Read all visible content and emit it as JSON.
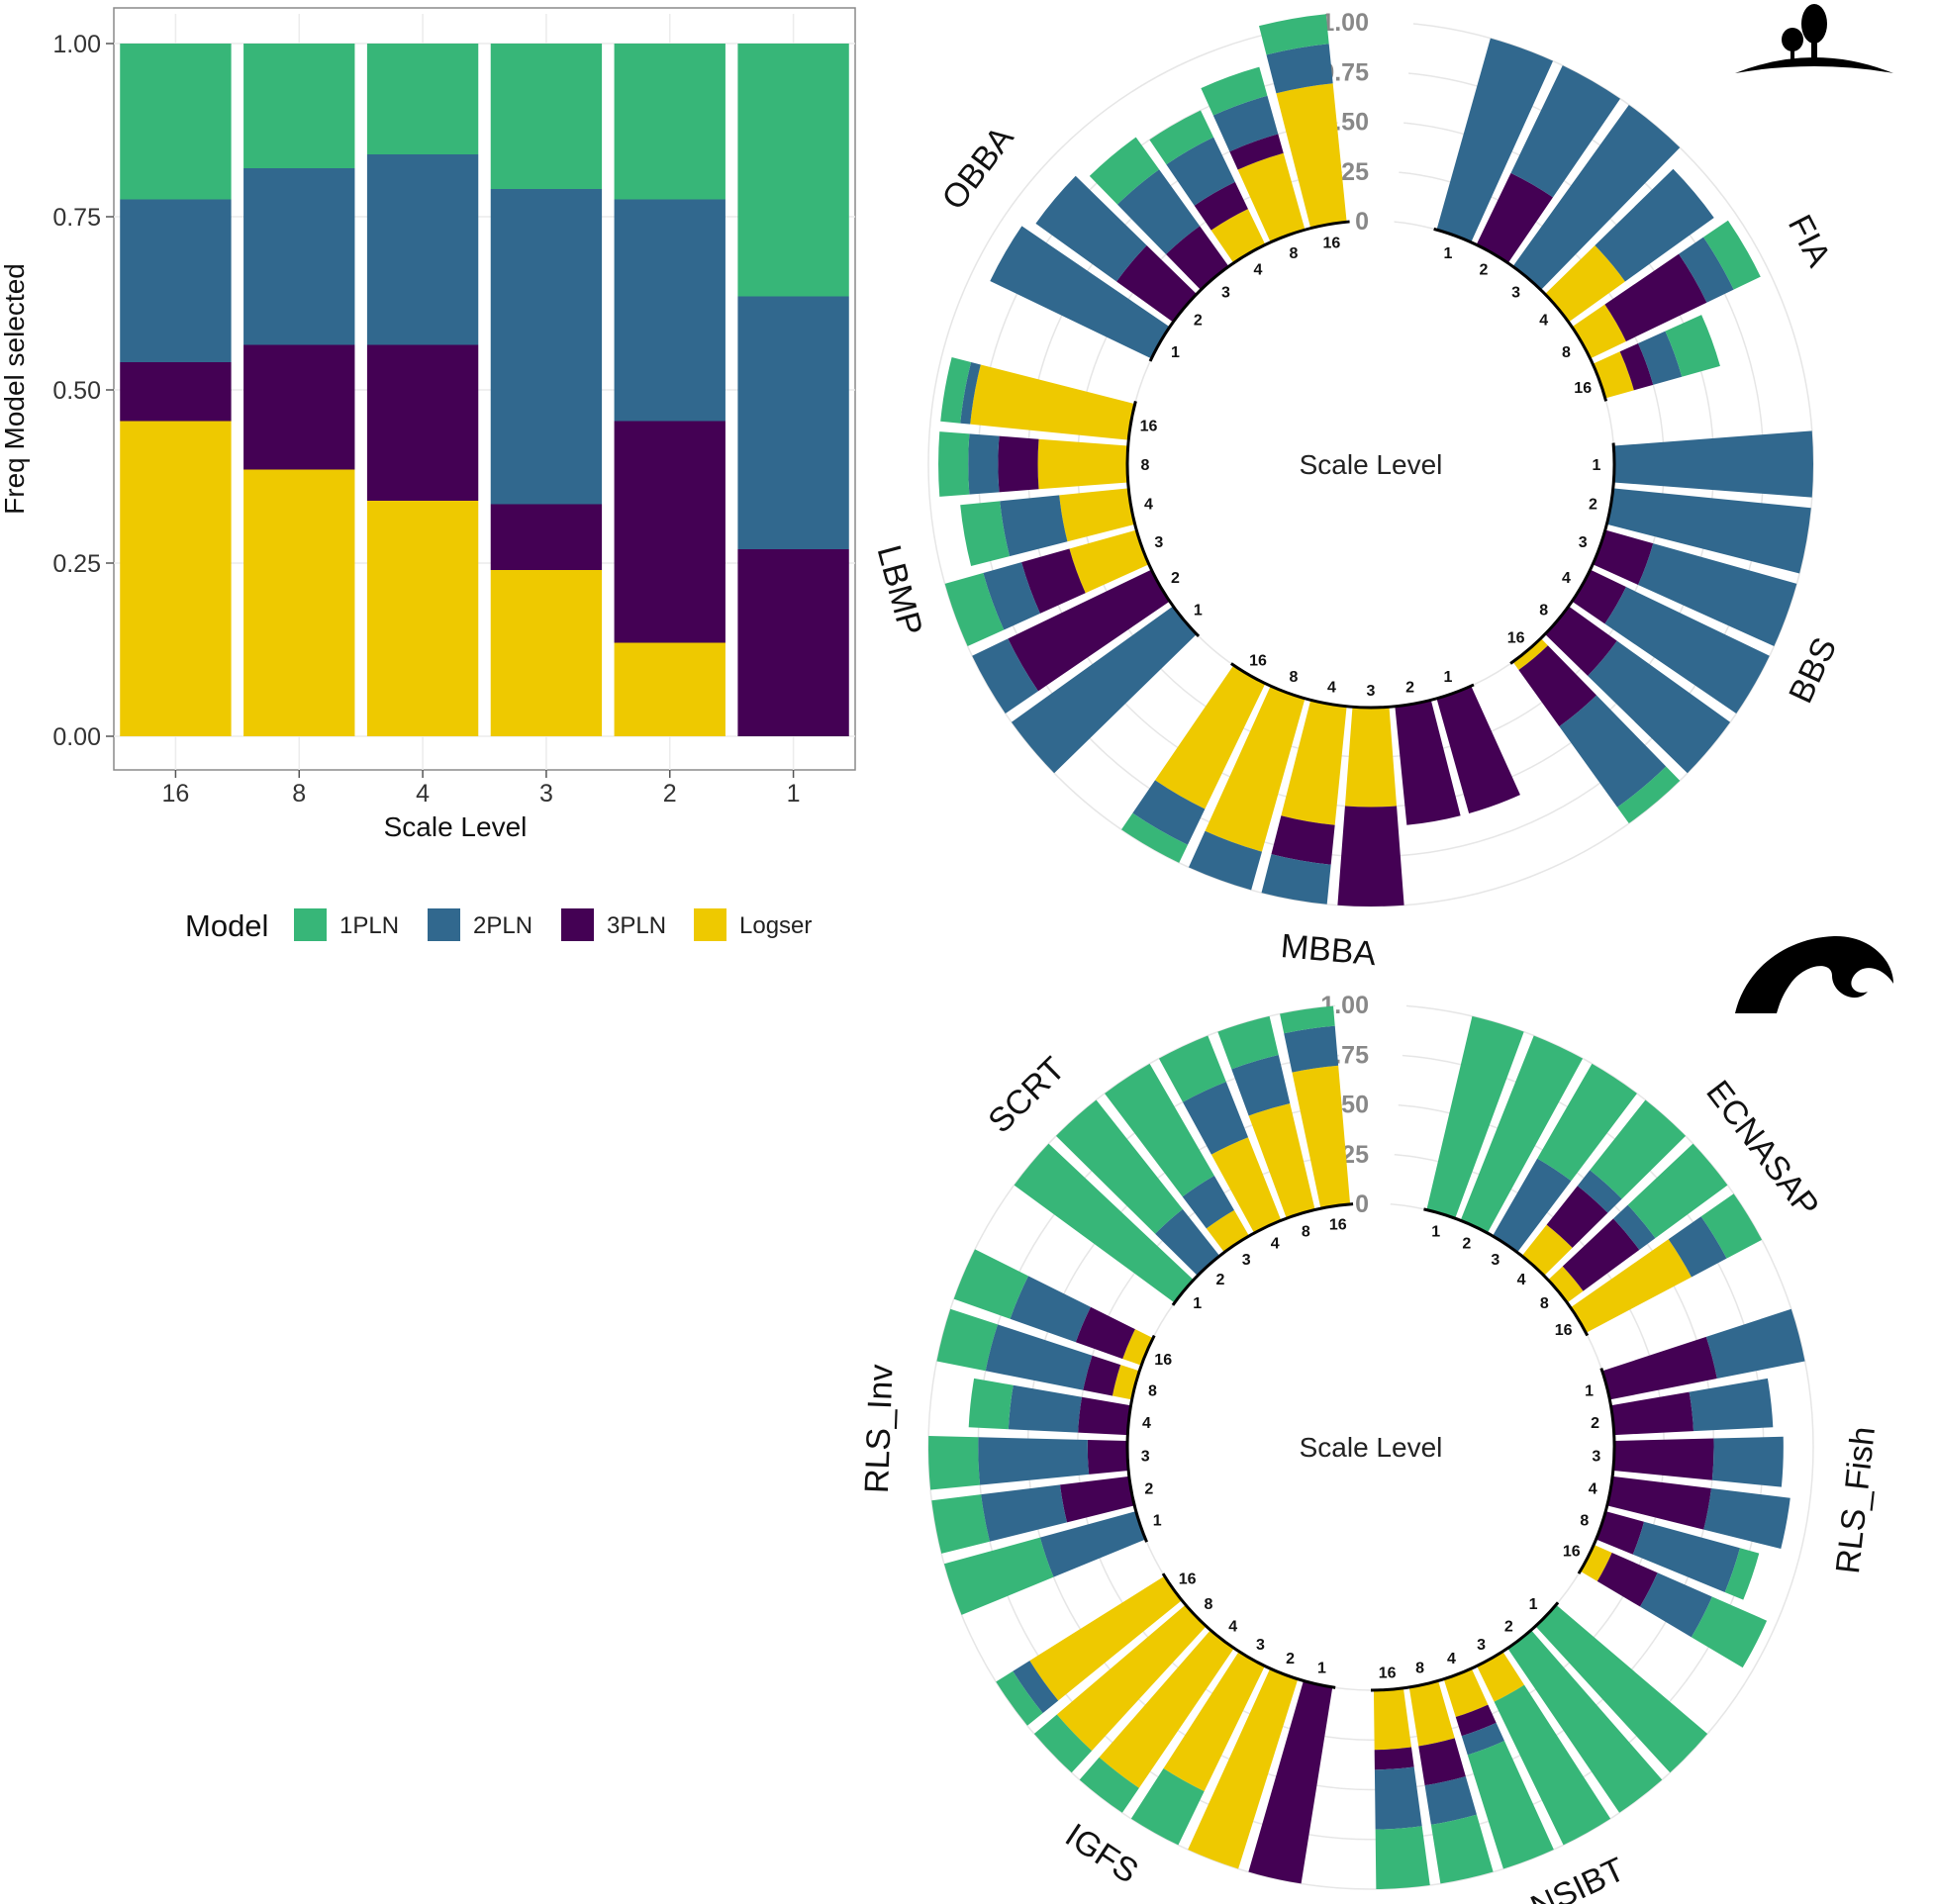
{
  "colors": {
    "1PLN": "#37B678",
    "2PLN": "#31688E",
    "3PLN": "#440154",
    "Logser": "#EEC900",
    "grid": "#E6E6E6",
    "panel_border": "#888888"
  },
  "models": [
    "1PLN",
    "2PLN",
    "3PLN",
    "Logser"
  ],
  "legend": {
    "title": "Model",
    "items": [
      "1PLN",
      "2PLN",
      "3PLN",
      "Logser"
    ]
  },
  "icons": {
    "terrestrial": "tree-on-hill-icon",
    "marine": "wave-icon"
  },
  "radial_axis_ticks": [
    "1.00",
    "0.75",
    "0.50",
    "0.25",
    "0"
  ],
  "chart_data": [
    {
      "type": "bar",
      "stacked": true,
      "title": "",
      "xlabel": "Scale Level",
      "ylabel": "Freq Model selected",
      "categories": [
        "16",
        "8",
        "4",
        "3",
        "2",
        "1"
      ],
      "yticks": [
        "0.00",
        "0.25",
        "0.50",
        "0.75",
        "1.00"
      ],
      "ylim": [
        0,
        1
      ],
      "series": [
        {
          "name": "Logser",
          "values": [
            0.455,
            0.385,
            0.34,
            0.24,
            0.135,
            0
          ]
        },
        {
          "name": "3PLN",
          "values": [
            0.085,
            0.18,
            0.225,
            0.095,
            0.32,
            0.27
          ]
        },
        {
          "name": "2PLN",
          "values": [
            0.235,
            0.255,
            0.275,
            0.455,
            0.32,
            0.365
          ]
        },
        {
          "name": "1PLN",
          "values": [
            0.225,
            0.18,
            0.16,
            0.21,
            0.225,
            0.365
          ]
        }
      ]
    },
    {
      "type": "circular-stacked-bar",
      "group": "terrestrial",
      "center_label": "Scale Level",
      "scale_levels": [
        "1",
        "2",
        "3",
        "4",
        "8",
        "16"
      ],
      "datasets": [
        {
          "name": "FIA",
          "label_pos": "after",
          "bars": {
            "1PLN": [
              0,
              0,
              0,
              0,
              0.15,
              0.2
            ],
            "2PLN": [
              1,
              0.6,
              1,
              0.55,
              0.15,
              0.15
            ],
            "3PLN": [
              0,
              0.4,
              0,
              0,
              0.45,
              0.1
            ],
            "Logser": [
              0,
              0,
              0,
              0.35,
              0.2,
              0.15
            ]
          }
        },
        {
          "name": "BBS",
          "label_pos": "center",
          "bars": {
            "1PLN": [
              0,
              0,
              0,
              0,
              0,
              0.1
            ],
            "2PLN": [
              1,
              1,
              0.75,
              0.8,
              0.7,
              0.5
            ],
            "3PLN": [
              0,
              0,
              0.25,
              0.2,
              0.3,
              0.35
            ],
            "Logser": [
              0,
              0,
              0,
              0,
              0,
              0.05
            ]
          }
        },
        {
          "name": "MBBA",
          "label_pos": "center",
          "bars": {
            "1PLN": [
              0,
              0,
              0,
              0,
              0,
              0.1
            ],
            "2PLN": [
              0,
              0,
              0,
              0.2,
              0.2,
              0.2
            ],
            "3PLN": [
              0.6,
              0.6,
              0.5,
              0.2,
              0,
              0
            ],
            "Logser": [
              0,
              0,
              0.5,
              0.6,
              0.8,
              0.7
            ]
          }
        },
        {
          "name": "LBMP",
          "label_pos": "center",
          "bars": {
            "1PLN": [
              0,
              0,
              0.2,
              0.2,
              0.15,
              0.1
            ],
            "2PLN": [
              1,
              0.2,
              0.2,
              0.3,
              0.15,
              0.05
            ],
            "3PLN": [
              0,
              0.8,
              0.25,
              0,
              0.2,
              0
            ],
            "Logser": [
              0,
              0,
              0.35,
              0.35,
              0.45,
              0.8
            ]
          }
        },
        {
          "name": "OBBA",
          "label_pos": "before",
          "bars": {
            "1PLN": [
              0,
              0,
              0.2,
              0.15,
              0.15,
              0.15
            ],
            "2PLN": [
              0.9,
              0.5,
              0.35,
              0.25,
              0.2,
              0.2
            ],
            "3PLN": [
              0,
              0.35,
              0.25,
              0.15,
              0.1,
              0
            ],
            "Logser": [
              0,
              0,
              0,
              0.2,
              0.4,
              0.7
            ]
          }
        }
      ]
    },
    {
      "type": "circular-stacked-bar",
      "group": "marine",
      "center_label": "Scale Level",
      "scale_levels": [
        "1",
        "2",
        "3",
        "4",
        "8",
        "16"
      ],
      "datasets": [
        {
          "name": "ECNASAP",
          "label_pos": "after",
          "bars": {
            "1PLN": [
              1,
              1,
              0.55,
              0.45,
              0.45,
              0.2
            ],
            "2PLN": [
              0,
              0,
              0.45,
              0.1,
              0.1,
              0.2
            ],
            "3PLN": [
              0,
              0,
              0,
              0.25,
              0.35,
              0
            ],
            "Logser": [
              0,
              0,
              0,
              0.2,
              0.1,
              0.6
            ]
          }
        },
        {
          "name": "RLS_Fish",
          "label_pos": "center",
          "bars": {
            "1PLN": [
              0,
              0,
              0,
              0,
              0.1,
              0.3
            ],
            "2PLN": [
              0.45,
              0.4,
              0.35,
              0.4,
              0.5,
              0.3
            ],
            "3PLN": [
              0.55,
              0.4,
              0.5,
              0.5,
              0.2,
              0.25
            ],
            "Logser": [
              0,
              0,
              0,
              0,
              0,
              0.1
            ]
          }
        },
        {
          "name": "NSIBT",
          "label_pos": "center",
          "bars": {
            "1PLN": [
              1,
              1,
              0.8,
              0.6,
              0.3,
              0.3
            ],
            "2PLN": [
              0,
              0,
              0,
              0.1,
              0.2,
              0.3
            ],
            "3PLN": [
              0,
              0,
              0,
              0.1,
              0.2,
              0.1
            ],
            "Logser": [
              0,
              0,
              0.2,
              0.2,
              0.3,
              0.3
            ]
          }
        },
        {
          "name": "IGFS",
          "label_pos": "center",
          "bars": {
            "1PLN": [
              0,
              0,
              0.3,
              0.15,
              0.15,
              0.1
            ],
            "2PLN": [
              0,
              0,
              0,
              0,
              0,
              0.1
            ],
            "3PLN": [
              1,
              0,
              0,
              0,
              0,
              0
            ],
            "Logser": [
              0,
              1,
              0.7,
              0.85,
              0.85,
              0.8
            ]
          }
        },
        {
          "name": "RLS_Inv",
          "label_pos": "center",
          "bars": {
            "1PLN": [
              0.5,
              0.25,
              0.25,
              0.2,
              0.25,
              0.3
            ],
            "2PLN": [
              0.5,
              0.4,
              0.55,
              0.35,
              0.5,
              0.35
            ],
            "3PLN": [
              0,
              0.35,
              0.2,
              0.25,
              0.15,
              0.25
            ],
            "Logser": [
              0,
              0,
              0,
              0,
              0.1,
              0.1
            ]
          }
        },
        {
          "name": "SCRT",
          "label_pos": "before",
          "bars": {
            "1PLN": [
              1,
              0.7,
              0.65,
              0.25,
              0.2,
              0.1
            ],
            "2PLN": [
              0,
              0.3,
              0.2,
              0.3,
              0.25,
              0.2
            ],
            "3PLN": [
              0,
              0,
              0,
              0,
              0,
              0
            ],
            "Logser": [
              0,
              0,
              0.15,
              0.45,
              0.55,
              0.7
            ]
          }
        }
      ]
    }
  ]
}
